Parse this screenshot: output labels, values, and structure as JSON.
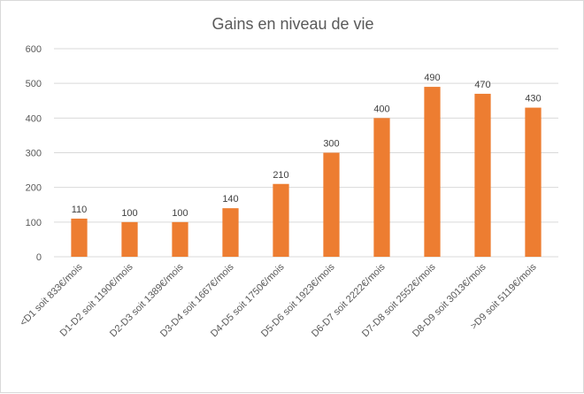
{
  "chart_data": {
    "type": "bar",
    "title": "Gains en niveau de vie",
    "categories": [
      "<D1 soit 833€/mois",
      "D1-D2 soit 1190€/mois",
      "D2-D3 soit 1389€/mois",
      "D3-D4 soit 1667€/mois",
      "D4-D5 soit 1750€/mois",
      "D5-D6 soit 1923€/mois",
      "D6-D7 soit 2222€/mois",
      "D7-D8 soit 2552€/mois",
      "D8-D9 soit 3013€/mois",
      ">D9 soit 5119€/mois"
    ],
    "values": [
      110,
      100,
      100,
      140,
      210,
      300,
      400,
      490,
      470,
      430
    ],
    "data_labels": [
      "110",
      "100",
      "100",
      "140",
      "210",
      "300",
      "400",
      "490",
      "470",
      "430"
    ],
    "yticks": [
      "0",
      "100",
      "200",
      "300",
      "400",
      "500",
      "600"
    ],
    "ylim": [
      0,
      600
    ],
    "grid": true,
    "legend": "none",
    "colors": {
      "bar": "#ED7D31",
      "grid": "#d9d9d9",
      "text": "#595959"
    }
  }
}
